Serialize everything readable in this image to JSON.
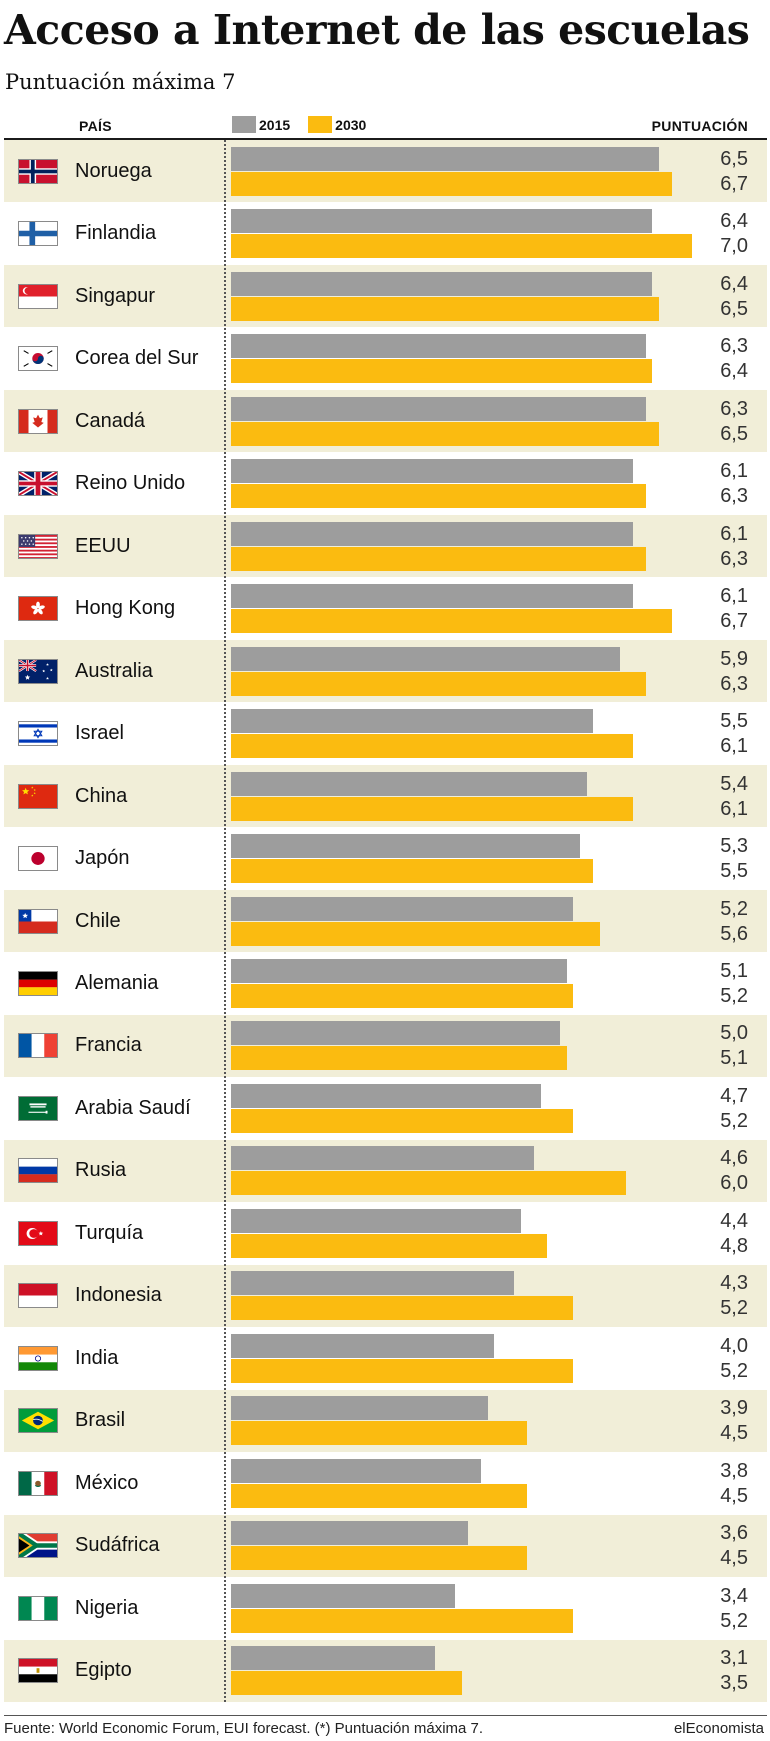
{
  "title": "Acceso a Internet de las escuelas",
  "subtitle": "Puntuación máxima 7",
  "headers": {
    "country": "PAÍS",
    "score": "PUNTUACIÓN"
  },
  "legend": [
    {
      "label": "2015",
      "color": "#9d9d9d"
    },
    {
      "label": "2030",
      "color": "#fbbb10"
    }
  ],
  "footer": {
    "source": "Fuente: World Economic Forum, EUI forecast. (*) Puntuación máxima 7.",
    "brand": "elEconomista"
  },
  "chart_data": {
    "type": "bar",
    "orientation": "horizontal",
    "xlim": [
      0,
      7
    ],
    "categories": [
      "Noruega",
      "Finlandia",
      "Singapur",
      "Corea del Sur",
      "Canadá",
      "Reino Unido",
      "EEUU",
      "Hong Kong",
      "Australia",
      "Israel",
      "China",
      "Japón",
      "Chile",
      "Alemania",
      "Francia",
      "Arabia Saudí",
      "Rusia",
      "Turquía",
      "Indonesia",
      "India",
      "Brasil",
      "México",
      "Sudáfrica",
      "Nigeria",
      "Egipto"
    ],
    "flag_icons": [
      "norway-flag-icon",
      "finland-flag-icon",
      "singapore-flag-icon",
      "south-korea-flag-icon",
      "canada-flag-icon",
      "uk-flag-icon",
      "usa-flag-icon",
      "hong-kong-flag-icon",
      "australia-flag-icon",
      "israel-flag-icon",
      "china-flag-icon",
      "japan-flag-icon",
      "chile-flag-icon",
      "germany-flag-icon",
      "france-flag-icon",
      "saudi-arabia-flag-icon",
      "russia-flag-icon",
      "turkey-flag-icon",
      "indonesia-flag-icon",
      "india-flag-icon",
      "brazil-flag-icon",
      "mexico-flag-icon",
      "south-africa-flag-icon",
      "nigeria-flag-icon",
      "egypt-flag-icon"
    ],
    "series": [
      {
        "name": "2015",
        "color": "#9d9d9d",
        "values": [
          6.5,
          6.4,
          6.4,
          6.3,
          6.3,
          6.1,
          6.1,
          6.1,
          5.9,
          5.5,
          5.4,
          5.3,
          5.2,
          5.1,
          5.0,
          4.7,
          4.6,
          4.4,
          4.3,
          4.0,
          3.9,
          3.8,
          3.6,
          3.4,
          3.1
        ],
        "labels": [
          "6,5",
          "6,4",
          "6,4",
          "6,3",
          "6,3",
          "6,1",
          "6,1",
          "6,1",
          "5,9",
          "5,5",
          "5,4",
          "5,3",
          "5,2",
          "5,1",
          "5,0",
          "4,7",
          "4,6",
          "4,4",
          "4,3",
          "4,0",
          "3,9",
          "3,8",
          "3,6",
          "3,4",
          "3,1"
        ]
      },
      {
        "name": "2030",
        "color": "#fbbb10",
        "values": [
          6.7,
          7.0,
          6.5,
          6.4,
          6.5,
          6.3,
          6.3,
          6.7,
          6.3,
          6.1,
          6.1,
          5.5,
          5.6,
          5.2,
          5.1,
          5.2,
          6.0,
          4.8,
          5.2,
          5.2,
          4.5,
          4.5,
          4.5,
          5.2,
          3.5
        ],
        "labels": [
          "6,7",
          "7,0",
          "6,5",
          "6,4",
          "6,5",
          "6,3",
          "6,3",
          "6,7",
          "6,3",
          "6,1",
          "6,1",
          "5,5",
          "5,6",
          "5,2",
          "5,1",
          "5,2",
          "6,0",
          "4,8",
          "5,2",
          "5,2",
          "4,5",
          "4,5",
          "4,5",
          "5,2",
          "3,5"
        ]
      }
    ]
  }
}
